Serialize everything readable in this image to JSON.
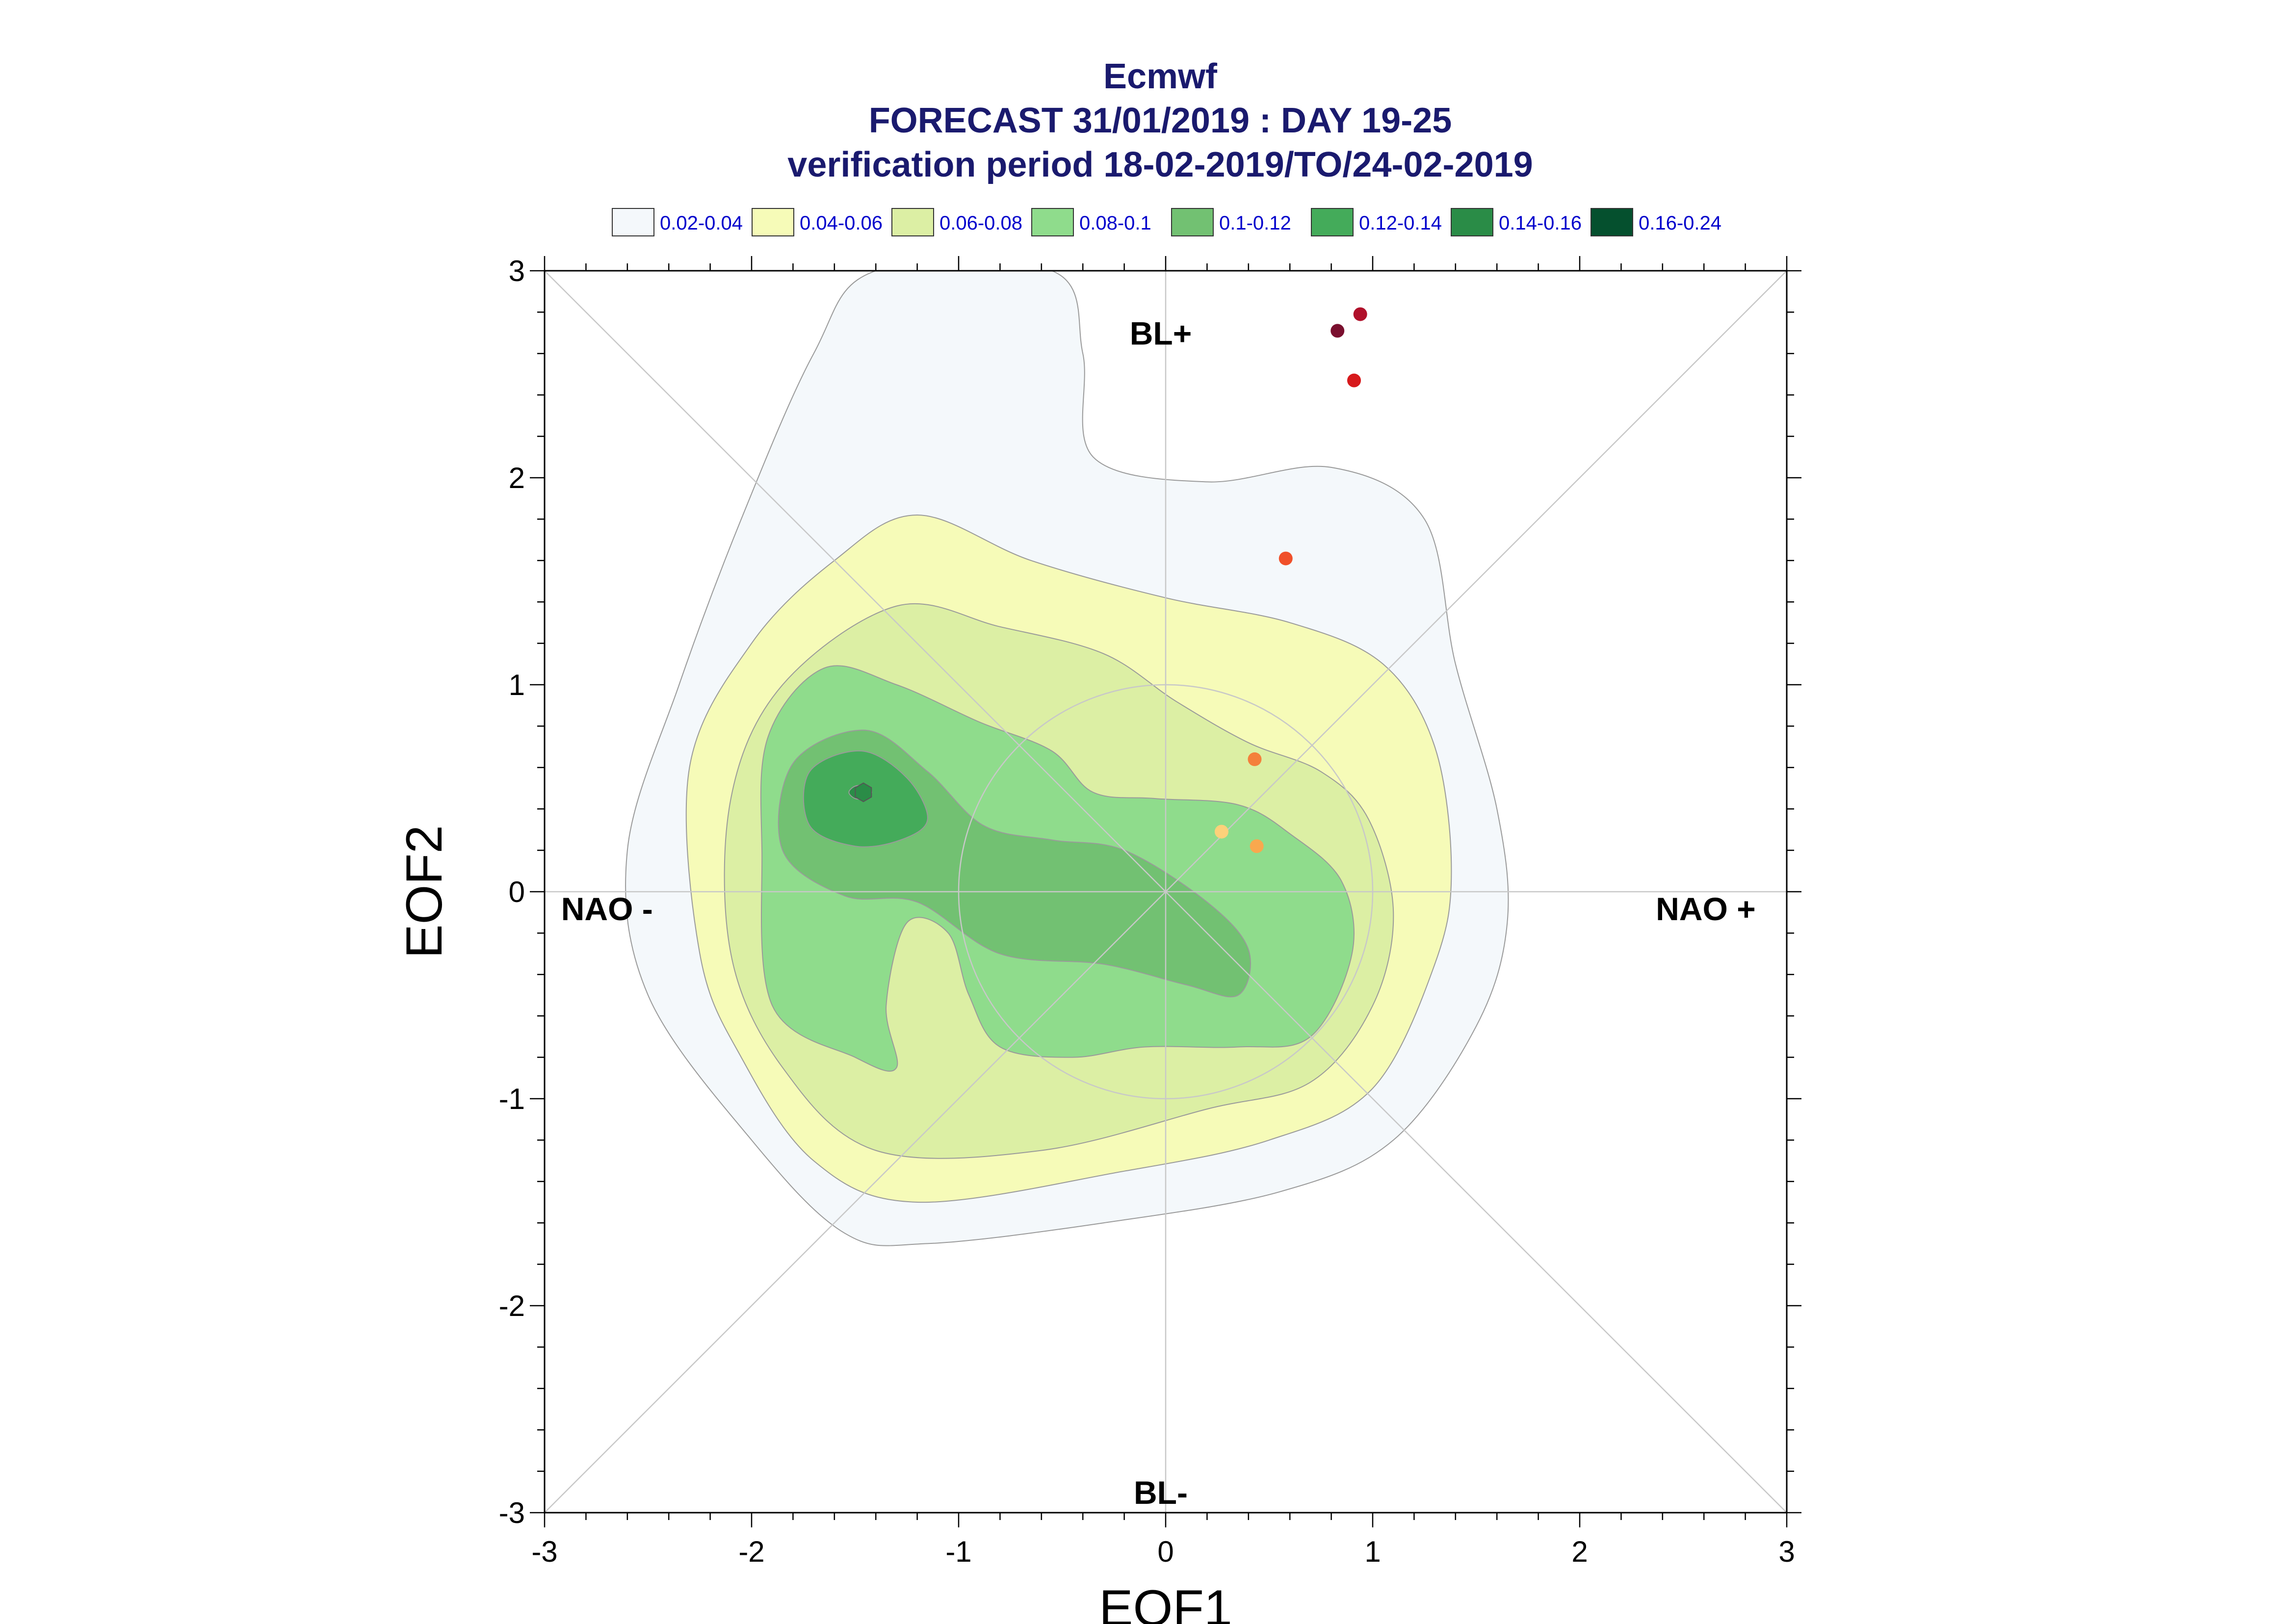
{
  "chart_data": {
    "type": "scatter",
    "title": [
      "Ecmwf",
      "FORECAST 31/01/2019 : DAY 19-25",
      "verification period 18-02-2019/TO/24-02-2019"
    ],
    "xlabel": "EOF1",
    "ylabel": "EOF2",
    "xlim": [
      -3,
      3
    ],
    "ylim": [
      -3,
      3
    ],
    "xticks": [
      -3,
      -2,
      -1,
      0,
      1,
      2,
      3
    ],
    "yticks": [
      -3,
      -2,
      -1,
      0,
      1,
      2,
      3
    ],
    "xtick_labels": [
      "-3",
      "-2",
      "-1",
      "0",
      "1",
      "2",
      "3"
    ],
    "ytick_labels": [
      "-3",
      "-2",
      "-1",
      "0",
      "1",
      "2",
      "3"
    ],
    "grid": false,
    "reference_circle_radius": 1,
    "regime_labels": {
      "top": "BL+",
      "bottom": "BL-",
      "left": "NAO -",
      "right": "NAO +"
    },
    "legend": {
      "placement": "top",
      "entries": [
        {
          "label": "0.02-0.04",
          "color": "#f4f8fb"
        },
        {
          "label": "0.04-0.06",
          "color": "#f6fbb8"
        },
        {
          "label": "0.06-0.08",
          "color": "#dcefa4"
        },
        {
          "label": "0.08-0.1",
          "color": "#8fdc8c"
        },
        {
          "label": "0.1-0.12",
          "color": "#72c172"
        },
        {
          "label": "0.12-0.14",
          "color": "#44ab5a"
        },
        {
          "label": "0.14-0.16",
          "color": "#2a8c47"
        },
        {
          "label": "0.16-0.24",
          "color": "#05502e"
        }
      ]
    },
    "density_contours": [
      {
        "level": "0.02-0.04",
        "color": "#f4f8fb",
        "points": [
          [
            -1.4,
            3.0
          ],
          [
            -0.55,
            3.0
          ],
          [
            -0.4,
            2.6
          ],
          [
            -0.35,
            2.1
          ],
          [
            0.2,
            1.98
          ],
          [
            0.8,
            2.05
          ],
          [
            1.25,
            1.8
          ],
          [
            1.4,
            1.1
          ],
          [
            1.6,
            0.4
          ],
          [
            1.65,
            -0.15
          ],
          [
            1.5,
            -0.65
          ],
          [
            1.1,
            -1.2
          ],
          [
            0.55,
            -1.45
          ],
          [
            -0.3,
            -1.6
          ],
          [
            -1.15,
            -1.7
          ],
          [
            -1.55,
            -1.65
          ],
          [
            -2.0,
            -1.2
          ],
          [
            -2.5,
            -0.5
          ],
          [
            -2.6,
            0.2
          ],
          [
            -2.35,
            1.0
          ],
          [
            -2.05,
            1.8
          ],
          [
            -1.7,
            2.6
          ]
        ]
      },
      {
        "level": "0.04-0.06",
        "color": "#f6fbb8",
        "points": [
          [
            -1.2,
            1.82
          ],
          [
            -0.65,
            1.6
          ],
          [
            0,
            1.42
          ],
          [
            0.6,
            1.3
          ],
          [
            1.05,
            1.1
          ],
          [
            1.3,
            0.7
          ],
          [
            1.38,
            0.1
          ],
          [
            1.3,
            -0.35
          ],
          [
            1.0,
            -0.95
          ],
          [
            0.5,
            -1.2
          ],
          [
            -0.2,
            -1.35
          ],
          [
            -1.2,
            -1.5
          ],
          [
            -1.7,
            -1.3
          ],
          [
            -2.05,
            -0.8
          ],
          [
            -2.25,
            -0.3
          ],
          [
            -2.3,
            0.6
          ],
          [
            -2.0,
            1.2
          ],
          [
            -1.6,
            1.6
          ]
        ]
      },
      {
        "level": "0.06-0.08",
        "color": "#dcefa4",
        "points": [
          [
            -1.3,
            1.38
          ],
          [
            -0.8,
            1.28
          ],
          [
            -0.3,
            1.15
          ],
          [
            0.05,
            0.92
          ],
          [
            0.4,
            0.72
          ],
          [
            0.75,
            0.58
          ],
          [
            0.98,
            0.35
          ],
          [
            1.1,
            -0.1
          ],
          [
            1.0,
            -0.55
          ],
          [
            0.7,
            -0.92
          ],
          [
            0.2,
            -1.05
          ],
          [
            -0.6,
            -1.25
          ],
          [
            -1.4,
            -1.25
          ],
          [
            -1.85,
            -0.85
          ],
          [
            -2.1,
            -0.3
          ],
          [
            -2.1,
            0.45
          ],
          [
            -1.85,
            1.0
          ]
        ]
      },
      {
        "level": "0.08-0.1",
        "color": "#8fdc8c",
        "points": [
          [
            -1.65,
            1.08
          ],
          [
            -1.3,
            1.0
          ],
          [
            -0.9,
            0.82
          ],
          [
            -0.55,
            0.68
          ],
          [
            -0.35,
            0.48
          ],
          [
            -0.05,
            0.45
          ],
          [
            0.35,
            0.42
          ],
          [
            0.6,
            0.28
          ],
          [
            0.85,
            0.05
          ],
          [
            0.9,
            -0.3
          ],
          [
            0.7,
            -0.7
          ],
          [
            0.35,
            -0.75
          ],
          [
            -0.1,
            -0.75
          ],
          [
            -0.45,
            -0.8
          ],
          [
            -0.8,
            -0.75
          ],
          [
            -0.95,
            -0.5
          ],
          [
            -1.05,
            -0.2
          ],
          [
            -1.25,
            -0.15
          ],
          [
            -1.35,
            -0.55
          ],
          [
            -1.3,
            -0.85
          ],
          [
            -1.5,
            -0.8
          ],
          [
            -1.9,
            -0.55
          ],
          [
            -1.95,
            0.2
          ],
          [
            -1.92,
            0.75
          ]
        ]
      },
      {
        "level": "0.1-0.12",
        "color": "#72c172",
        "points": [
          [
            -1.8,
            0.62
          ],
          [
            -1.45,
            0.78
          ],
          [
            -1.15,
            0.58
          ],
          [
            -0.88,
            0.32
          ],
          [
            -0.55,
            0.25
          ],
          [
            -0.2,
            0.2
          ],
          [
            0.2,
            -0.05
          ],
          [
            0.4,
            -0.28
          ],
          [
            0.35,
            -0.5
          ],
          [
            0.1,
            -0.45
          ],
          [
            -0.3,
            -0.35
          ],
          [
            -0.8,
            -0.3
          ],
          [
            -1.2,
            -0.05
          ],
          [
            -1.55,
            -0.02
          ],
          [
            -1.85,
            0.2
          ]
        ]
      },
      {
        "level": "0.12-0.14",
        "color": "#44ab5a",
        "points": [
          [
            -1.72,
            0.58
          ],
          [
            -1.47,
            0.68
          ],
          [
            -1.25,
            0.55
          ],
          [
            -1.15,
            0.35
          ],
          [
            -1.28,
            0.25
          ],
          [
            -1.5,
            0.22
          ],
          [
            -1.72,
            0.32
          ]
        ]
      },
      {
        "level": "0.14-0.16",
        "color": "#2a8c47",
        "points": [
          [
            -1.5,
            0.51
          ],
          [
            -1.45,
            0.51
          ],
          [
            -1.42,
            0.48
          ],
          [
            -1.45,
            0.45
          ],
          [
            -1.5,
            0.45
          ],
          [
            -1.53,
            0.48
          ]
        ]
      }
    ],
    "points": [
      {
        "x": 0.83,
        "y": 2.71,
        "color": "#7a0f2e"
      },
      {
        "x": 0.94,
        "y": 2.79,
        "color": "#b0102a"
      },
      {
        "x": 0.91,
        "y": 2.47,
        "color": "#d7191c"
      },
      {
        "x": 0.58,
        "y": 1.61,
        "color": "#f0502a"
      },
      {
        "x": 0.43,
        "y": 0.64,
        "color": "#f4803c"
      },
      {
        "x": 0.44,
        "y": 0.22,
        "color": "#f9a84e"
      },
      {
        "x": 0.27,
        "y": 0.29,
        "color": "#fdd17a"
      }
    ]
  }
}
